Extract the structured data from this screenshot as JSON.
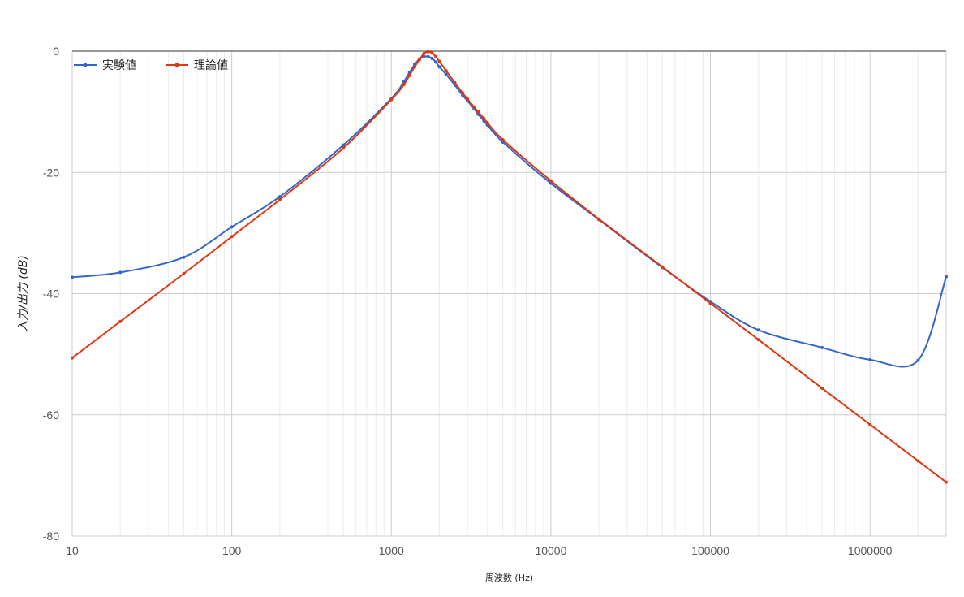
{
  "chart_data": {
    "type": "line",
    "xscale": "log",
    "xlabel": "周波数 (Hz)",
    "ylabel": "入力/出力 (dB)",
    "xlim": [
      10,
      3000000
    ],
    "ylim": [
      -80,
      0
    ],
    "x_ticks": [
      "10",
      "100",
      "1000",
      "10000",
      "100000",
      "1000000"
    ],
    "y_ticks": [
      "0",
      "-20",
      "-40",
      "-60",
      "-80"
    ],
    "grid": true,
    "legend_position": "top-left",
    "series": [
      {
        "name": "実験値",
        "color": "#3366cc",
        "points": [
          [
            10,
            -37.3
          ],
          [
            20,
            -36.5
          ],
          [
            50,
            -34.0
          ],
          [
            100,
            -29.0
          ],
          [
            200,
            -24.0
          ],
          [
            500,
            -15.5
          ],
          [
            1000,
            -7.8
          ],
          [
            1200,
            -5.0
          ],
          [
            1300,
            -3.5
          ],
          [
            1400,
            -2.2
          ],
          [
            1500,
            -1.3
          ],
          [
            1600,
            -0.9
          ],
          [
            1700,
            -0.9
          ],
          [
            1800,
            -1.2
          ],
          [
            1900,
            -1.8
          ],
          [
            2000,
            -2.6
          ],
          [
            2200,
            -3.8
          ],
          [
            2500,
            -5.6
          ],
          [
            2800,
            -7.3
          ],
          [
            3000,
            -8.2
          ],
          [
            3300,
            -9.5
          ],
          [
            3500,
            -10.4
          ],
          [
            3800,
            -11.5
          ],
          [
            4000,
            -12.2
          ],
          [
            5000,
            -15.0
          ],
          [
            10000,
            -21.8
          ],
          [
            20000,
            -27.8
          ],
          [
            50000,
            -35.7
          ],
          [
            100000,
            -41.3
          ],
          [
            200000,
            -46.0
          ],
          [
            500000,
            -48.9
          ],
          [
            1000000,
            -50.9
          ],
          [
            2000000,
            -51.0
          ],
          [
            3000000,
            -37.2
          ]
        ]
      },
      {
        "name": "理論値",
        "color": "#dc3912",
        "points": [
          [
            10,
            -50.6
          ],
          [
            20,
            -44.6
          ],
          [
            50,
            -36.7
          ],
          [
            100,
            -30.6
          ],
          [
            200,
            -24.5
          ],
          [
            500,
            -16.0
          ],
          [
            1000,
            -8.0
          ],
          [
            1200,
            -5.5
          ],
          [
            1300,
            -4.0
          ],
          [
            1400,
            -2.6
          ],
          [
            1500,
            -1.4
          ],
          [
            1600,
            -0.4
          ],
          [
            1700,
            -0.1
          ],
          [
            1800,
            -0.3
          ],
          [
            1900,
            -0.9
          ],
          [
            2000,
            -1.7
          ],
          [
            2200,
            -3.2
          ],
          [
            2500,
            -5.2
          ],
          [
            2800,
            -6.9
          ],
          [
            3000,
            -7.9
          ],
          [
            3300,
            -9.2
          ],
          [
            3500,
            -10.0
          ],
          [
            3800,
            -11.1
          ],
          [
            4000,
            -11.8
          ],
          [
            5000,
            -14.6
          ],
          [
            10000,
            -21.4
          ],
          [
            20000,
            -27.7
          ],
          [
            50000,
            -35.6
          ],
          [
            100000,
            -41.6
          ],
          [
            200000,
            -47.6
          ],
          [
            500000,
            -55.6
          ],
          [
            1000000,
            -61.6
          ],
          [
            2000000,
            -67.6
          ],
          [
            3000000,
            -71.1
          ]
        ]
      }
    ]
  }
}
